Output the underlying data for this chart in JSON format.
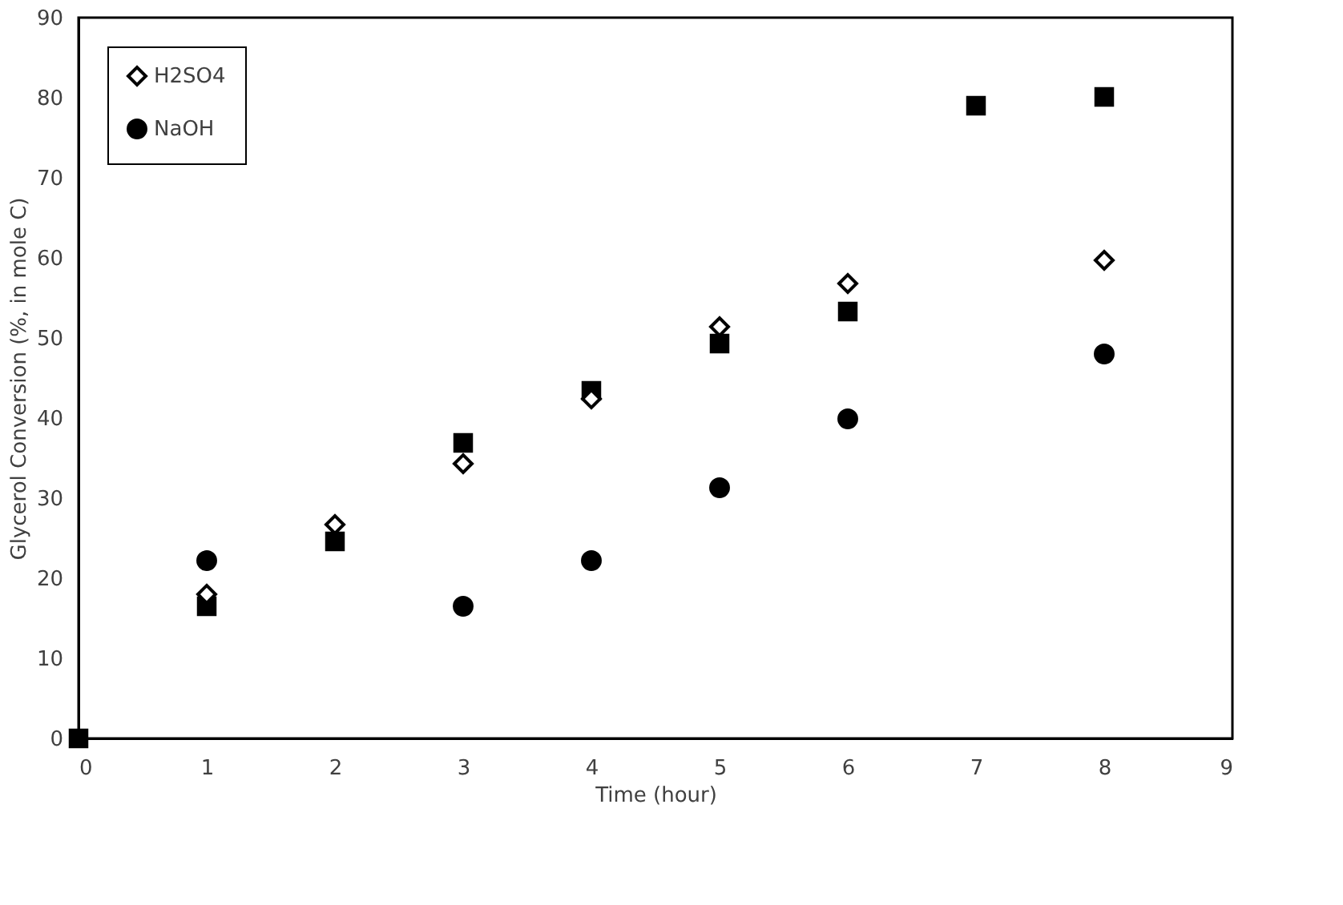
{
  "chart_data": {
    "type": "scatter",
    "xlabel": "Time (hour)",
    "ylabel": "Glycerol Conversion (%, in mole C)",
    "x": [
      0,
      1,
      2,
      3,
      4,
      5,
      6,
      7,
      8
    ],
    "series": [
      {
        "color": "#000000",
        "marker": "square",
        "values": [
          0,
          16.5,
          24.6,
          36.9,
          43.4,
          49.3,
          53.3,
          79.0,
          80.1
        ]
      },
      {
        "name": "H2SO4",
        "color": "#000000",
        "marker": "diamond",
        "values": [
          null,
          18,
          26.7,
          34.3,
          42.4,
          51.4,
          56.8,
          null,
          59.7
        ]
      },
      {
        "name": "NaOH",
        "color": "#000000",
        "marker": "circle",
        "values": [
          null,
          22.2,
          null,
          16.5,
          22.2,
          31.3,
          39.9,
          null,
          48.0
        ]
      }
    ],
    "xlim": [
      0,
      9
    ],
    "xticks": [
      0,
      1,
      2,
      3,
      4,
      5,
      6,
      7,
      8,
      9
    ],
    "ylim": [
      0,
      90
    ],
    "yticks": [
      0,
      10,
      20,
      30,
      40,
      50,
      60,
      70,
      80,
      90
    ],
    "grid": false,
    "legend": "top left"
  }
}
